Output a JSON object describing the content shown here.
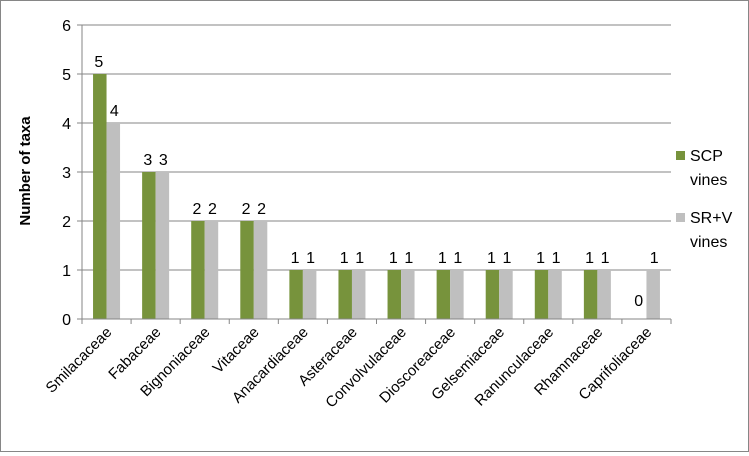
{
  "chart_data": {
    "type": "bar",
    "title": "",
    "xlabel": "",
    "ylabel": "Number of taxa",
    "ylim": [
      0,
      6
    ],
    "yticks": [
      "0",
      "1",
      "2",
      "3",
      "4",
      "5",
      "6"
    ],
    "grid": true,
    "legend_position": "right",
    "categories": [
      "Smilacaceae",
      "Fabaceae",
      "Bignoniaceae",
      "Vitaceae",
      "Anacardiaceae",
      "Asteraceae",
      "Convolvulaceae",
      "Dioscoreaceae",
      "Gelsemiaceae",
      "Ranunculaceae",
      "Rhamnaceae",
      "Caprifoliaceae"
    ],
    "series": [
      {
        "name": "SCP vines",
        "legend_lines": [
          "SCP",
          "vines"
        ],
        "color": "#77933c",
        "values": [
          5,
          3,
          2,
          2,
          1,
          1,
          1,
          1,
          1,
          1,
          1,
          0
        ],
        "labels": [
          "5",
          "3",
          "2",
          "2",
          "1",
          "1",
          "1",
          "1",
          "1",
          "1",
          "1",
          "0"
        ]
      },
      {
        "name": "SR+V vines",
        "legend_lines": [
          "SR+V",
          "vines"
        ],
        "color": "#bfbfbf",
        "values": [
          4,
          3,
          2,
          2,
          1,
          1,
          1,
          1,
          1,
          1,
          1,
          1
        ],
        "labels": [
          "4",
          "3",
          "2",
          "2",
          "1",
          "1",
          "1",
          "1",
          "1",
          "1",
          "1",
          "1"
        ]
      }
    ]
  }
}
